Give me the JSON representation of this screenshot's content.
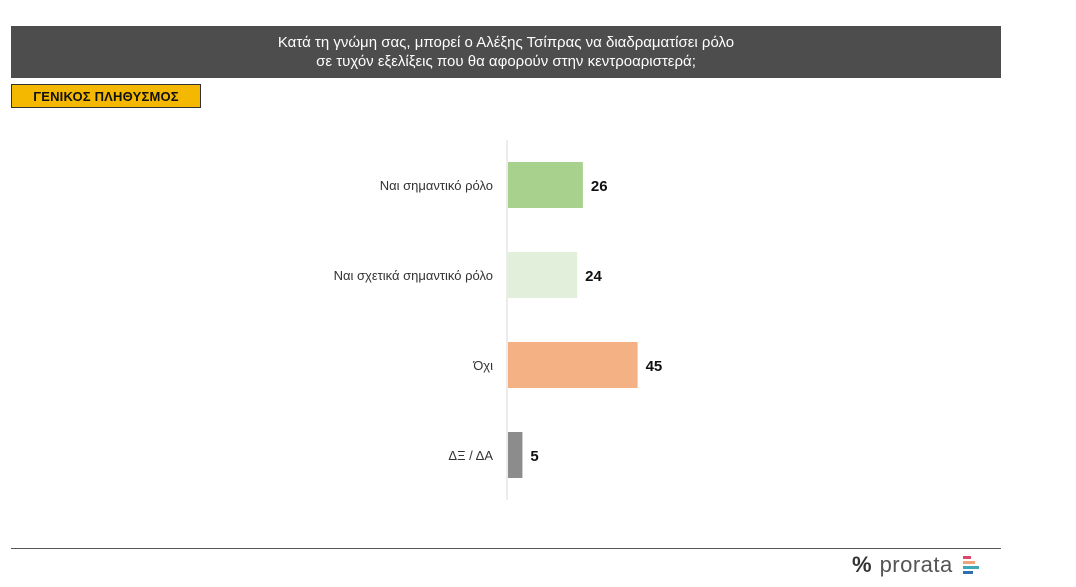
{
  "header": {
    "title_line1": "Κατά τη γνώμη σας, μπορεί ο Αλέξης Τσίπρας να διαδραματίσει ρόλο",
    "title_line2": "σε τυχόν εξελίξεις που θα αφορούν στην κεντροαριστερά;"
  },
  "badge": {
    "label": "ΓΕΝΙΚΟΣ ΠΛΗΘΥΣΜΟΣ"
  },
  "footer": {
    "brand_symbol": "%",
    "brand_name": "prorata",
    "brand_mark_colors": [
      "#d9486b",
      "#f0a37a",
      "#3fa7b8",
      "#2f6fae"
    ]
  },
  "chart_data": {
    "type": "bar",
    "orientation": "horizontal",
    "categories": [
      "Ναι σημαντικό ρόλο",
      "Ναι σχετικά σημαντικό ρόλο",
      "Όχι",
      "ΔΞ / ΔΑ"
    ],
    "values": [
      26,
      24,
      45,
      5
    ],
    "colors": [
      "#a9d18e",
      "#e2efda",
      "#f4b183",
      "#8c8c8c"
    ],
    "data_labels": [
      "26",
      "24",
      "45",
      "5"
    ],
    "xlim": [
      0,
      100
    ],
    "grid": false,
    "legend": "none",
    "title": "Κατά τη γνώμη σας, μπορεί ο Αλέξης Τσίπρας να διαδραματίσει ρόλο σε τυχόν εξελίξεις που θα αφορούν στην κεντροαριστερά;"
  }
}
